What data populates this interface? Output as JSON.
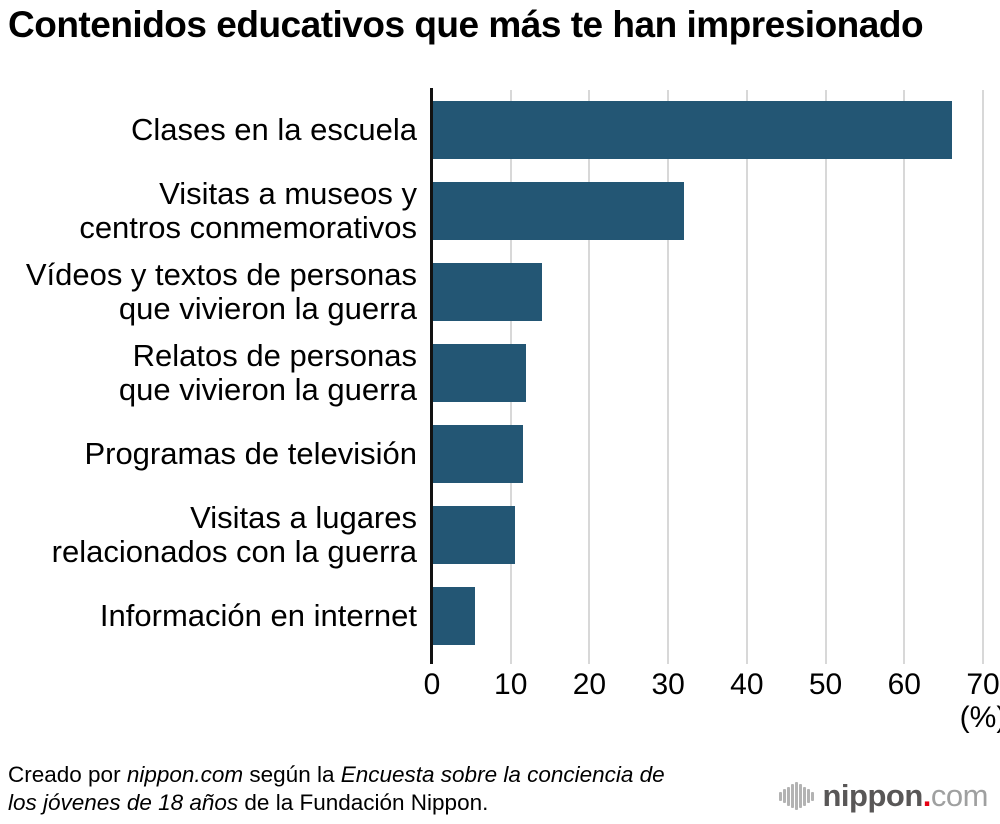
{
  "title": "Contenidos educativos que más te han impresionado",
  "chart_data": {
    "type": "bar",
    "orientation": "horizontal",
    "title": "Contenidos educativos que más te han impresionado",
    "categories": [
      "Clases en la escuela",
      "Visitas a museos y\ncentros conmemorativos",
      "Vídeos y textos de personas\nque vivieron la guerra",
      "Relatos de personas\nque vivieron la guerra",
      "Programas de televisión",
      "Visitas a lugares\nrelacionados con la guerra",
      "Información en internet"
    ],
    "values": [
      66,
      32,
      14,
      12,
      11.6,
      10.5,
      5.5
    ],
    "xlabel": "",
    "ylabel": "",
    "unit_label": "(%)",
    "xlim": [
      0,
      70
    ],
    "xticks": [
      0,
      10,
      20,
      30,
      40,
      50,
      60,
      70
    ],
    "grid": true,
    "legend": false,
    "bar_color": "#235674",
    "grid_color": "#d8d8d8",
    "axis_color": "#121212",
    "text_color": "#000000"
  },
  "footer": {
    "lines": [
      {
        "segments": [
          {
            "text": "Creado por ",
            "italic": false
          },
          {
            "text": "nippon.com",
            "italic": true
          },
          {
            "text": " según la ",
            "italic": false
          },
          {
            "text": "Encuesta sobre la conciencia de",
            "italic": true
          }
        ]
      },
      {
        "segments": [
          {
            "text": "los jóvenes de 18 años",
            "italic": true
          },
          {
            "text": " de la Fundación Nippon.",
            "italic": false
          }
        ]
      }
    ]
  },
  "logo": {
    "icon": "soundwave-icon",
    "icon_color": "#b3b3b3",
    "icon_bars": [
      9,
      14,
      19,
      24,
      28,
      24,
      19,
      14,
      9
    ],
    "name": "nippon",
    "dot": ".",
    "tld": "com",
    "name_color": "#595757",
    "dot_color": "#e60012",
    "tld_color": "#9fa0a0"
  }
}
